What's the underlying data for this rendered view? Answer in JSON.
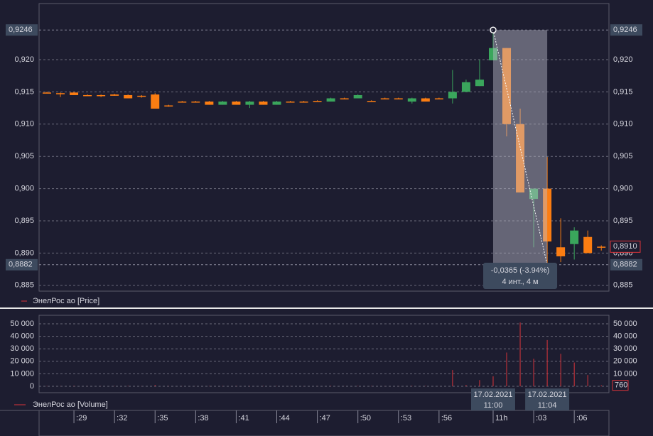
{
  "chart_data": [
    {
      "type": "candlestick",
      "categories": [
        null,
        null,
        ":29",
        null,
        null,
        ":32",
        null,
        null,
        ":35",
        null,
        null,
        ":38",
        null,
        null,
        ":41",
        null,
        null,
        ":44",
        null,
        null,
        ":47",
        null,
        null,
        ":50",
        null,
        null,
        ":53",
        null,
        null,
        ":56",
        null,
        null,
        null,
        "11h",
        null,
        null,
        ":03",
        null,
        null,
        ":06",
        null,
        null
      ],
      "series": [
        {
          "name": "ЭнелРос ао [Price]",
          "color": "#d9343a",
          "up_color": "#3aa65c",
          "down_color": "#fb7d12",
          "open": [
            0.9149,
            0.9148,
            0.9149,
            0.9145,
            0.9145,
            0.9146,
            0.9145,
            0.9144,
            0.9146,
            0.9129,
            0.9135,
            0.9135,
            0.9135,
            0.913,
            0.9135,
            0.913,
            0.9135,
            0.913,
            0.9135,
            0.9135,
            0.9136,
            0.9135,
            0.914,
            0.914,
            0.9136,
            0.914,
            0.914,
            0.9135,
            0.914,
            0.914,
            0.914,
            0.915,
            0.9159,
            0.9199,
            0.9218,
            0.91,
            0.8984,
            0.9,
            0.8909,
            0.8914,
            0.8925,
            0.891
          ],
          "high": [
            0.915,
            0.9149,
            0.915,
            0.9146,
            0.9146,
            0.9147,
            0.9146,
            0.9145,
            0.9148,
            0.913,
            0.9136,
            0.9136,
            0.9136,
            0.9136,
            0.9136,
            0.9136,
            0.9136,
            0.9136,
            0.9136,
            0.9136,
            0.9137,
            0.9141,
            0.9141,
            0.9146,
            0.9137,
            0.9141,
            0.9141,
            0.9141,
            0.9141,
            0.9141,
            0.9184,
            0.9169,
            0.92,
            0.9246,
            0.9218,
            0.9124,
            0.9,
            0.9049,
            0.8954,
            0.894,
            0.8935,
            0.8912
          ],
          "low": [
            0.9148,
            0.9142,
            0.9145,
            0.9144,
            0.9142,
            0.9144,
            0.914,
            0.9141,
            0.9124,
            0.9127,
            0.9134,
            0.9134,
            0.913,
            0.913,
            0.913,
            0.9125,
            0.913,
            0.913,
            0.9134,
            0.9134,
            0.9135,
            0.9135,
            0.9139,
            0.914,
            0.9135,
            0.9139,
            0.9139,
            0.9132,
            0.9135,
            0.9139,
            0.9132,
            0.915,
            0.9159,
            0.9199,
            0.9081,
            0.8994,
            0.8909,
            0.8882,
            0.8886,
            0.889,
            0.89,
            0.8904
          ],
          "close": [
            0.9149,
            0.9148,
            0.9145,
            0.9145,
            0.9145,
            0.9144,
            0.914,
            0.9144,
            0.9124,
            0.9129,
            0.9135,
            0.9135,
            0.913,
            0.9135,
            0.913,
            0.9135,
            0.913,
            0.9135,
            0.9135,
            0.9135,
            0.9136,
            0.914,
            0.914,
            0.9145,
            0.9135,
            0.914,
            0.914,
            0.914,
            0.9135,
            0.914,
            0.915,
            0.9165,
            0.9169,
            0.9218,
            0.91,
            0.8994,
            0.9,
            0.8918,
            0.8895,
            0.8935,
            0.89,
            0.891
          ]
        }
      ],
      "ylim": [
        0.8841,
        0.9287
      ],
      "yticks": [
        {
          "value": 0.885,
          "label": "0,885"
        },
        {
          "value": 0.89,
          "label": "0,890"
        },
        {
          "value": 0.895,
          "label": "0,895"
        },
        {
          "value": 0.9,
          "label": "0,900"
        },
        {
          "value": 0.905,
          "label": "0,905"
        },
        {
          "value": 0.91,
          "label": "0,910"
        },
        {
          "value": 0.915,
          "label": "0,915"
        },
        {
          "value": 0.92,
          "label": "0,920"
        }
      ],
      "markers": [
        {
          "value": 0.9246,
          "label": "0,9246"
        },
        {
          "value": 0.8882,
          "label": "0,8882"
        }
      ],
      "last_price": {
        "value": 0.891,
        "label": "0,8910"
      },
      "grid": true,
      "measurement": {
        "change": "-0,0365 (-3.94%)",
        "span": "4 инт., 4 м"
      }
    },
    {
      "type": "volume",
      "series": [
        {
          "name": "ЭнелРос ао [Volume]",
          "color": "#d9343a",
          "values": [
            200,
            150,
            300,
            100,
            100,
            200,
            300,
            100,
            1000,
            200,
            100,
            100,
            200,
            200,
            200,
            200,
            200,
            200,
            100,
            100,
            100,
            300,
            100,
            300,
            200,
            100,
            100,
            300,
            300,
            100,
            13000,
            1000,
            5000,
            8000,
            27000,
            51000,
            22000,
            37000,
            26000,
            19000,
            9000,
            760
          ]
        }
      ],
      "ylim": [
        -5100,
        56800
      ],
      "yticks": [
        0,
        {
          "value": 10000,
          "label": "10 000"
        },
        {
          "value": 20000,
          "label": "20 000"
        },
        {
          "value": 30000,
          "label": "30 000"
        },
        {
          "value": 40000,
          "label": "40 000"
        },
        {
          "value": 50000,
          "label": "50 000"
        }
      ],
      "last_value": {
        "value": 760,
        "label": "760"
      },
      "grid": true,
      "crosshair_labels": [
        [
          "17.02.2021",
          "11:00"
        ],
        [
          "17.02.2021",
          "11:04"
        ]
      ]
    }
  ]
}
